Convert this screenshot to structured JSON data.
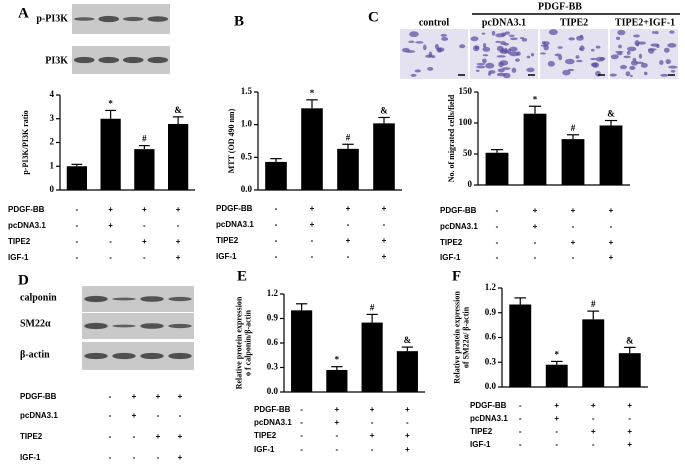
{
  "chart_data": [
    {
      "type": "bar",
      "panel": "A",
      "ylabel": [
        "p-PI3K/PI3K ratio"
      ],
      "categories": [
        null,
        null,
        null,
        null
      ],
      "values": [
        1.0,
        3.0,
        1.72,
        2.78
      ],
      "errors": [
        0.08,
        0.35,
        0.15,
        0.3
      ],
      "annotations": [
        null,
        "*",
        "#",
        "&"
      ],
      "color": "#000000",
      "ylim": [
        0,
        4
      ],
      "yticks": [
        0,
        1,
        2,
        3,
        4
      ],
      "treatments": [
        {
          "label": "PDGF-BB",
          "signs": [
            "-",
            "+",
            "+",
            "+"
          ]
        },
        {
          "label": "pcDNA3.1",
          "signs": [
            "-",
            "+",
            "-",
            "-"
          ]
        },
        {
          "label": "TIPE2",
          "signs": [
            "-",
            "-",
            "+",
            "+"
          ]
        },
        {
          "label": "IGF-1",
          "signs": [
            "-",
            "-",
            "-",
            "+"
          ]
        }
      ]
    },
    {
      "type": "bar",
      "panel": "B",
      "ylabel": [
        "MTT (OD 490 nm)"
      ],
      "categories": [
        null,
        null,
        null,
        null
      ],
      "values": [
        0.43,
        1.25,
        0.63,
        1.02
      ],
      "errors": [
        0.05,
        0.13,
        0.07,
        0.09
      ],
      "annotations": [
        null,
        "*",
        "#",
        "&"
      ],
      "color": "#000000",
      "ylim": [
        0,
        1.5
      ],
      "yticks": [
        {
          "value": 0,
          "label": "0.0"
        },
        0.5,
        {
          "value": 1,
          "label": "1.0"
        },
        1.5
      ],
      "treatments": [
        {
          "label": "PDGF-BB",
          "signs": [
            "-",
            "+",
            "+",
            "+"
          ]
        },
        {
          "label": "pcDNA3.1",
          "signs": [
            "-",
            "+",
            "-",
            "-"
          ]
        },
        {
          "label": "TIPE2",
          "signs": [
            "-",
            "-",
            "+",
            "+"
          ]
        },
        {
          "label": "IGF-1",
          "signs": [
            "-",
            "-",
            "-",
            "+"
          ]
        }
      ]
    },
    {
      "type": "bar",
      "panel": "C",
      "ylabel": [
        "No. of migrated cells/field"
      ],
      "categories": [
        null,
        null,
        null,
        null
      ],
      "values": [
        52,
        115,
        74,
        96
      ],
      "errors": [
        5,
        12,
        7,
        8
      ],
      "annotations": [
        null,
        "*",
        "#",
        "&"
      ],
      "color": "#000000",
      "ylim": [
        0,
        150
      ],
      "yticks": [
        0,
        50,
        100,
        150
      ],
      "treatments": [
        {
          "label": "PDGF-BB",
          "signs": [
            "-",
            "+",
            "+",
            "+"
          ]
        },
        {
          "label": "pcDNA3.1",
          "signs": [
            "-",
            "+",
            "-",
            "-"
          ]
        },
        {
          "label": "TIPE2",
          "signs": [
            "-",
            "-",
            "+",
            "+"
          ]
        },
        {
          "label": "IGF-1",
          "signs": [
            "-",
            "-",
            "-",
            "+"
          ]
        }
      ]
    },
    {
      "type": "bar",
      "panel": "E",
      "ylabel": [
        "Relative protein expression",
        "o f calponin/β-actin"
      ],
      "categories": [
        null,
        null,
        null,
        null
      ],
      "values": [
        1.0,
        0.27,
        0.85,
        0.5
      ],
      "errors": [
        0.08,
        0.04,
        0.1,
        0.05
      ],
      "annotations": [
        null,
        "*",
        "#",
        "&"
      ],
      "color": "#000000",
      "ylim": [
        0,
        1.2
      ],
      "yticks": [
        {
          "value": 0,
          "label": "0.0"
        },
        0.3,
        0.6,
        0.9,
        1.2
      ],
      "treatments": [
        {
          "label": "PDGF-BB",
          "signs": [
            "-",
            "+",
            "+",
            "+"
          ]
        },
        {
          "label": "pcDNA3.1",
          "signs": [
            "-",
            "+",
            "-",
            "-"
          ]
        },
        {
          "label": "TIPE2",
          "signs": [
            "-",
            "-",
            "+",
            "+"
          ]
        },
        {
          "label": "IGF-1",
          "signs": [
            "-",
            "-",
            "-",
            "+"
          ]
        }
      ]
    },
    {
      "type": "bar",
      "panel": "F",
      "ylabel": [
        "Relative protein expression",
        "of SM22α/ β-actin"
      ],
      "categories": [
        null,
        null,
        null,
        null
      ],
      "values": [
        1.0,
        0.27,
        0.82,
        0.41
      ],
      "errors": [
        0.08,
        0.04,
        0.1,
        0.07
      ],
      "annotations": [
        null,
        "*",
        "#",
        "&"
      ],
      "color": "#000000",
      "ylim": [
        0,
        1.2
      ],
      "yticks": [
        {
          "value": 0,
          "label": "0.0"
        },
        0.3,
        0.6,
        0.9,
        1.2
      ],
      "treatments": [
        {
          "label": "PDGF-BB",
          "signs": [
            "-",
            "+",
            "+",
            "+"
          ]
        },
        {
          "label": "pcDNA3.1",
          "signs": [
            "-",
            "+",
            "-",
            "-"
          ]
        },
        {
          "label": "TIPE2",
          "signs": [
            "-",
            "-",
            "+",
            "+"
          ]
        },
        {
          "label": "IGF-1",
          "signs": [
            "-",
            "-",
            "-",
            "+"
          ]
        }
      ]
    }
  ],
  "blot_A": {
    "labels": [
      "p-PI3K",
      "PI3K"
    ]
  },
  "micrographs_C": {
    "group_label": "PDGF-BB",
    "labels": [
      "control",
      "pcDNA3.1",
      "TIPE2",
      "TIPE2+IGF-1"
    ]
  },
  "panel_D": {
    "panel": "D",
    "blot_labels": [
      "calponin",
      "SM22α",
      "β-actin"
    ],
    "treatments": [
      {
        "label": "PDGF-BB",
        "signs": [
          "-",
          "+",
          "+",
          "+"
        ]
      },
      {
        "label": "pcDNA3.1",
        "signs": [
          "-",
          "+",
          "-",
          "-"
        ]
      },
      {
        "label": "TIPE2",
        "signs": [
          "-",
          "-",
          "+",
          "+"
        ]
      },
      {
        "label": "IGF-1",
        "signs": [
          "-",
          "-",
          "-",
          "+"
        ]
      }
    ]
  }
}
